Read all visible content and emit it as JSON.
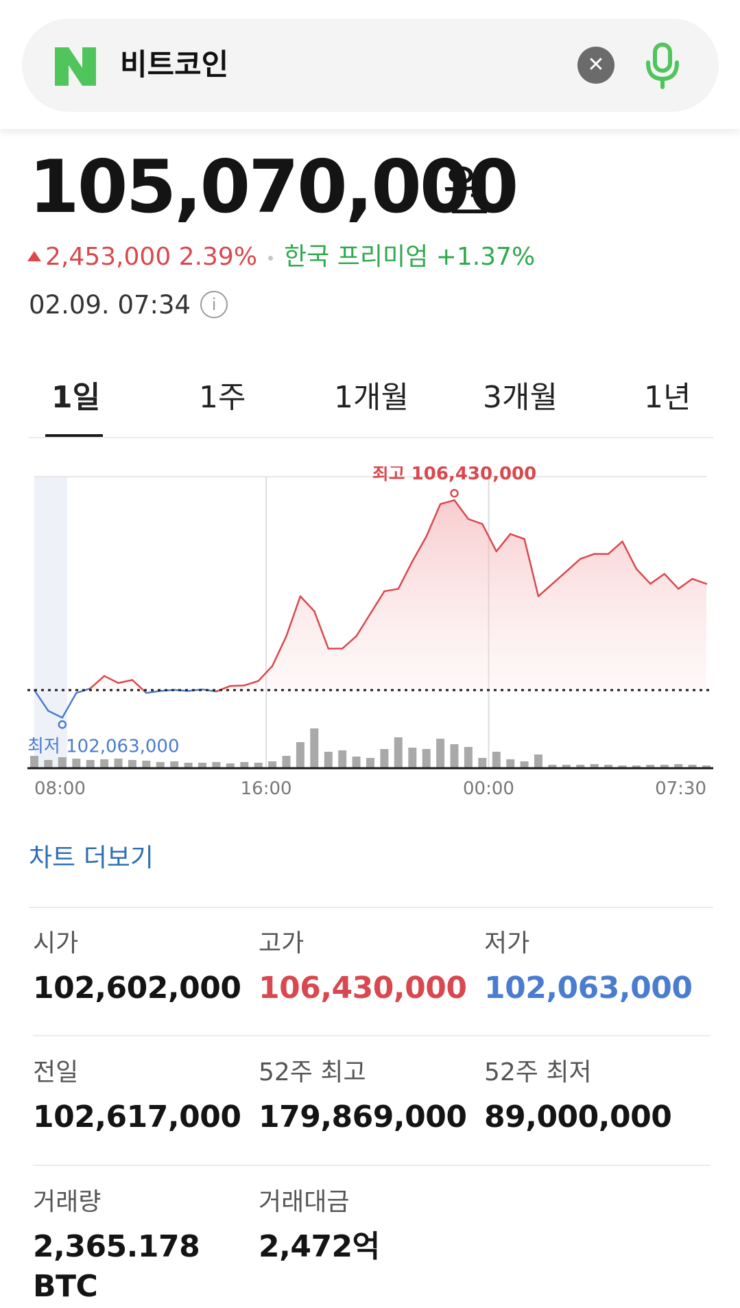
{
  "search": {
    "query": "비트코인",
    "clear_icon": "close-icon",
    "mic_icon": "mic-icon",
    "brand_color": "#4fc55c"
  },
  "quote": {
    "price": "105,070,000",
    "unit": "원",
    "change": "2,453,000",
    "change_pct": "2.39%",
    "premium": "한국 프리미엄 +1.37%",
    "timestamp": "02.09. 07:34"
  },
  "tabs": [
    {
      "label": "1일",
      "active": true
    },
    {
      "label": "1주",
      "active": false
    },
    {
      "label": "1개월",
      "active": false
    },
    {
      "label": "3개월",
      "active": false
    },
    {
      "label": "1년",
      "active": false
    }
  ],
  "chart_data": {
    "type": "line",
    "high_label": "최고 106,430,000",
    "low_label": "최저 102,063,000",
    "x_ticks": [
      "08:00",
      "16:00",
      "00:00",
      "07:30"
    ],
    "baseline": 102617000,
    "y_range": [
      101600000,
      106900000
    ],
    "price_series": [
      102617000,
      102200000,
      102063000,
      102560000,
      102650000,
      102900000,
      102760000,
      102820000,
      102560000,
      102600000,
      102620000,
      102600000,
      102630000,
      102590000,
      102700000,
      102710000,
      102800000,
      103100000,
      103700000,
      104500000,
      104200000,
      103450000,
      103450000,
      103700000,
      104150000,
      104600000,
      104650000,
      105200000,
      105700000,
      106350000,
      106430000,
      106050000,
      105950000,
      105400000,
      105750000,
      105650000,
      104500000,
      104750000,
      105000000,
      105250000,
      105350000,
      105350000,
      105600000,
      105050000,
      104750000,
      104950000,
      104650000,
      104850000,
      104750000
    ],
    "volume_series": [
      18,
      12,
      16,
      14,
      12,
      13,
      14,
      12,
      11,
      9,
      10,
      8,
      8,
      9,
      7,
      9,
      8,
      10,
      18,
      38,
      58,
      24,
      26,
      17,
      15,
      28,
      45,
      30,
      28,
      43,
      35,
      31,
      15,
      24,
      13,
      10,
      20,
      5,
      5,
      5,
      6,
      5,
      4,
      4,
      5,
      5,
      6,
      5,
      4
    ],
    "colors": {
      "up": "#d9484e",
      "down": "#4a7ccf"
    }
  },
  "more_chart": "차트 더보기",
  "stats": [
    {
      "label": "시가",
      "value": "102,602,000",
      "tone": "normal"
    },
    {
      "label": "고가",
      "value": "106,430,000",
      "tone": "red"
    },
    {
      "label": "저가",
      "value": "102,063,000",
      "tone": "blue"
    },
    {
      "label": "전일",
      "value": "102,617,000",
      "tone": "normal"
    },
    {
      "label": "52주 최고",
      "value": "179,869,000",
      "tone": "normal"
    },
    {
      "label": "52주 최저",
      "value": "89,000,000",
      "tone": "normal"
    },
    {
      "label": "거래량",
      "value": "2,365.178",
      "value2": "BTC",
      "tone": "normal"
    },
    {
      "label": "거래대금",
      "value": "2,472억",
      "tone": "normal"
    }
  ]
}
